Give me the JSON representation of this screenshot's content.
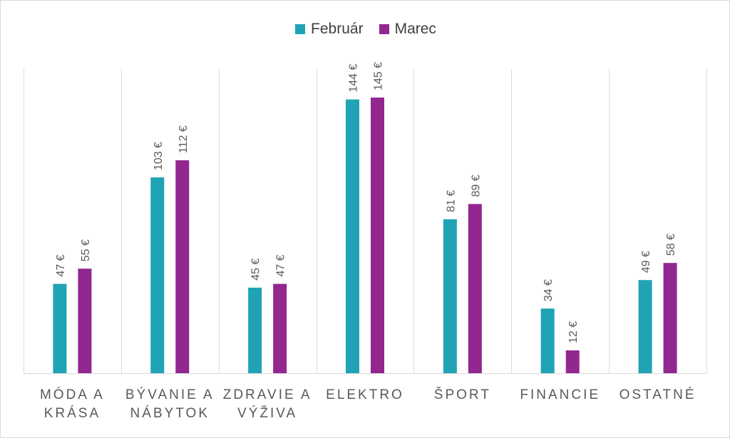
{
  "chart_data": {
    "type": "bar",
    "categories": [
      [
        "MÓDA A",
        "KRÁSA"
      ],
      [
        "BÝVANIE A",
        "NÁBYTOK"
      ],
      [
        "ZDRAVIE A",
        "VÝŽIVA"
      ],
      [
        "ELEKTRO"
      ],
      [
        "ŠPORT"
      ],
      [
        "FINANCIE"
      ],
      [
        "OSTATNÉ"
      ]
    ],
    "series": [
      {
        "name": "Február",
        "color": "#1fa3b5",
        "values": [
          47,
          103,
          45,
          144,
          81,
          34,
          49
        ],
        "labels": [
          "47 €",
          "103 €",
          "45 €",
          "144 €",
          "81 €",
          "34 €",
          "49 €"
        ]
      },
      {
        "name": "Marec",
        "color": "#92278f",
        "values": [
          55,
          112,
          47,
          145,
          89,
          12,
          58
        ],
        "labels": [
          "55 €",
          "112 €",
          "47 €",
          "145 €",
          "89 €",
          "12 €",
          "58 €"
        ]
      }
    ],
    "ylim": [
      0,
      150
    ],
    "legend_position": "top-center",
    "vertical_gridlines": true
  }
}
